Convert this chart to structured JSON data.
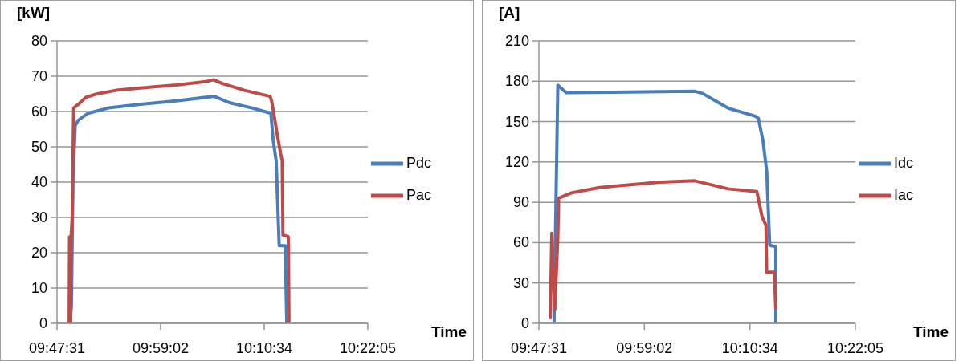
{
  "chart_data": [
    {
      "type": "line",
      "ylabel": "[kW]",
      "xlabel": "Time",
      "xlim": [
        9.79194,
        10.36806
      ],
      "xticks": [
        {
          "value": 9.79194,
          "label": "09:47:31"
        },
        {
          "value": 9.98389,
          "label": "09:59:02"
        },
        {
          "value": 10.17611,
          "label": "10:10:34"
        },
        {
          "value": 10.36806,
          "label": "10:22:05"
        }
      ],
      "ylim": [
        0,
        80
      ],
      "yticks": [
        0,
        10,
        20,
        30,
        40,
        50,
        60,
        70,
        80
      ],
      "grid": "y",
      "legend": "right",
      "marker": "none",
      "line_style": "solid",
      "series": [
        {
          "name": "Pdc",
          "color": "#4a7ebb",
          "x": [
            9.8158,
            9.8186,
            9.8214,
            9.8256,
            9.8312,
            9.8494,
            9.8872,
            9.9433,
            10.0133,
            10.0834,
            10.1114,
            10.1534,
            10.1884,
            10.1926,
            10.1982,
            10.2038,
            10.215,
            10.2178
          ],
          "values": [
            0,
            5,
            40,
            56,
            57.5,
            59.5,
            61,
            62,
            63,
            64.3,
            62.5,
            61,
            59.5,
            52,
            46,
            22,
            22,
            0
          ]
        },
        {
          "name": "Pac",
          "color": "#be4b48",
          "x": [
            9.8144,
            9.8151,
            9.8172,
            9.8179,
            9.82,
            9.8228,
            9.8312,
            9.8452,
            9.8662,
            9.9012,
            9.9713,
            10.0133,
            10.0693,
            10.082,
            10.0974,
            10.1394,
            10.187,
            10.1898,
            10.1954,
            10.1996,
            10.2066,
            10.2094,
            10.2108,
            10.2206,
            10.222
          ],
          "values": [
            0,
            24.5,
            0,
            24,
            30,
            61,
            62,
            64,
            65,
            66,
            67,
            67.5,
            68.5,
            69,
            68,
            66,
            64.3,
            63,
            58,
            54,
            48,
            46,
            25,
            24.5,
            0.5
          ]
        }
      ]
    },
    {
      "type": "line",
      "ylabel": "[A]",
      "xlabel": "Time",
      "xlim": [
        9.79194,
        10.36806
      ],
      "xticks": [
        {
          "value": 9.79194,
          "label": "09:47:31"
        },
        {
          "value": 9.98389,
          "label": "09:59:02"
        },
        {
          "value": 10.17611,
          "label": "10:10:34"
        },
        {
          "value": 10.36806,
          "label": "10:22:05"
        }
      ],
      "ylim": [
        0,
        210
      ],
      "yticks": [
        0,
        30,
        60,
        90,
        120,
        150,
        180,
        210
      ],
      "grid": "y",
      "legend": "right",
      "marker": "none",
      "line_style": "solid",
      "series": [
        {
          "name": "Idc",
          "color": "#4a7ebb",
          "x": [
            9.8195,
            9.8264,
            9.8416,
            10.0758,
            10.0896,
            10.1364,
            10.186,
            10.1915,
            10.1998,
            10.2067,
            10.2122,
            10.2232,
            10.2232
          ],
          "values": [
            0,
            177,
            171.5,
            172.5,
            171,
            160,
            154,
            152.5,
            136,
            113,
            58,
            57,
            0
          ]
        },
        {
          "name": "Iac",
          "color": "#be4b48",
          "x": [
            9.8126,
            9.8154,
            9.8209,
            9.8264,
            9.8278,
            9.8512,
            9.9022,
            10.0124,
            10.0758,
            10.1364,
            10.1888,
            10.1984,
            10.2053,
            10.2067,
            10.2205,
            10.2232
          ],
          "values": [
            4,
            67,
            10,
            64,
            93,
            97,
            101,
            105,
            106,
            100,
            98,
            79,
            73,
            38,
            38,
            11.6
          ]
        }
      ]
    }
  ]
}
